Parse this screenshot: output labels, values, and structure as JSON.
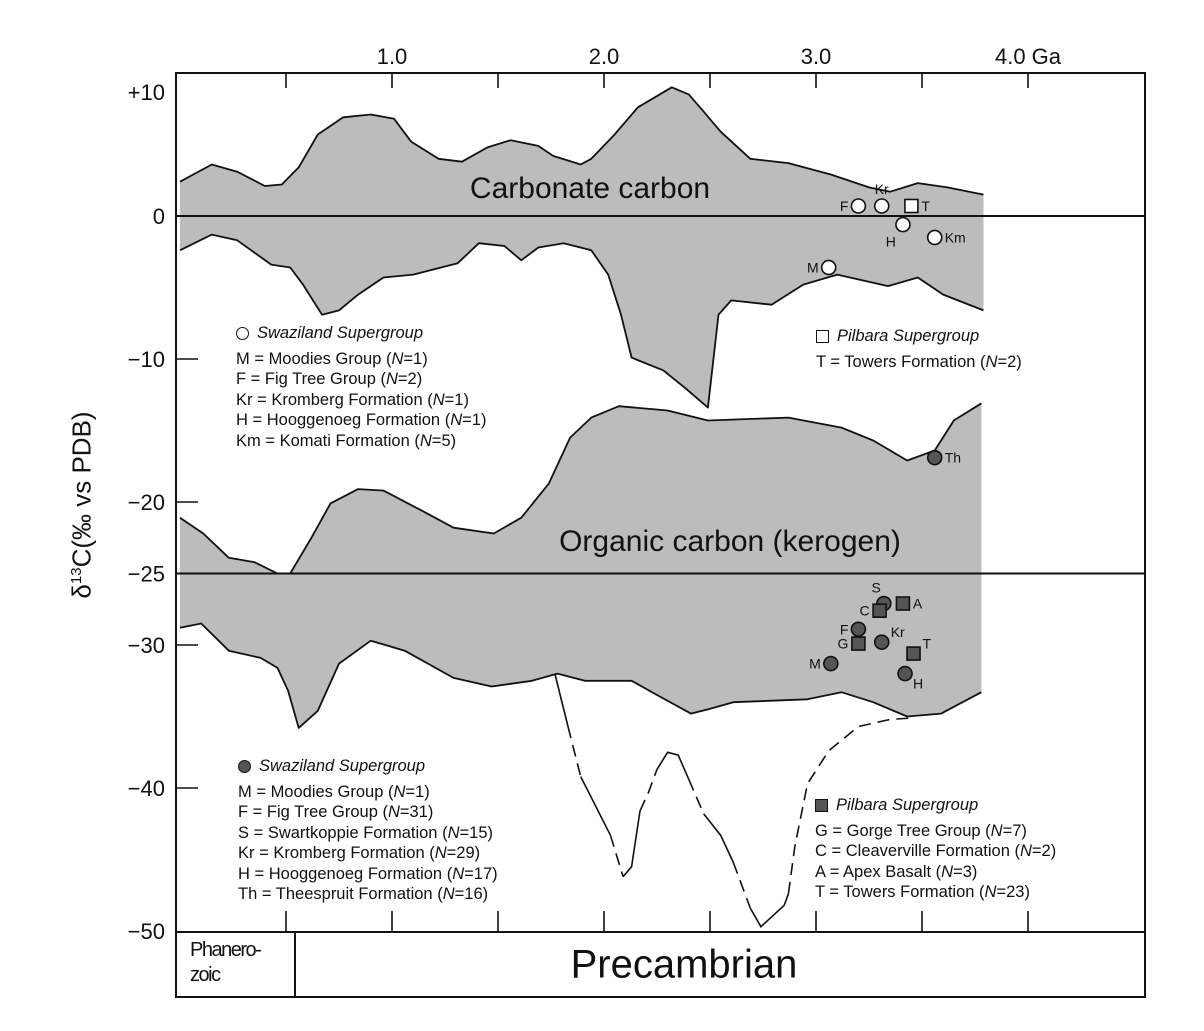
{
  "chart_data": {
    "type": "area",
    "title": "",
    "xlabel_unit": "Ga",
    "ylabel": {
      "prefix": "δ",
      "sup": "13",
      "rest": "C(‰ vs PDB)"
    },
    "xlim": [
      0,
      4.5
    ],
    "ylim": [
      -50,
      10
    ],
    "x_ticks": [
      0.5,
      1.0,
      1.5,
      2.0,
      2.5,
      3.0,
      3.5,
      4.0
    ],
    "x_tick_labels": [
      {
        "x": 1.0,
        "label": "1.0"
      },
      {
        "x": 2.0,
        "label": "2.0"
      },
      {
        "x": 3.0,
        "label": "3.0"
      },
      {
        "x": 4.0,
        "label": "4.0 Ga"
      }
    ],
    "y_tick_labels": [
      {
        "y": 10,
        "label": "+10"
      },
      {
        "y": 0,
        "label": "0"
      },
      {
        "y": -10,
        "label": "−10"
      },
      {
        "y": -20,
        "label": "−20"
      },
      {
        "y": -25,
        "label": "−25"
      },
      {
        "y": -30,
        "label": "−30"
      },
      {
        "y": -40,
        "label": "−40"
      },
      {
        "y": -50,
        "label": "−50"
      }
    ],
    "reference_lines": [
      0,
      -25
    ],
    "bands": [
      {
        "name": "Carbonate carbon",
        "upper": [
          [
            0.0,
            2.4
          ],
          [
            0.15,
            3.6
          ],
          [
            0.27,
            3.1
          ],
          [
            0.4,
            2.1
          ],
          [
            0.48,
            2.2
          ],
          [
            0.56,
            3.4
          ],
          [
            0.65,
            5.7
          ],
          [
            0.77,
            6.9
          ],
          [
            0.9,
            7.1
          ],
          [
            1.01,
            6.8
          ],
          [
            1.09,
            5.2
          ],
          [
            1.22,
            4.0
          ],
          [
            1.33,
            3.8
          ],
          [
            1.45,
            4.8
          ],
          [
            1.56,
            5.3
          ],
          [
            1.69,
            4.9
          ],
          [
            1.76,
            4.2
          ],
          [
            1.89,
            3.6
          ],
          [
            1.94,
            4.0
          ],
          [
            2.05,
            5.7
          ],
          [
            2.16,
            7.6
          ],
          [
            2.32,
            9.0
          ],
          [
            2.4,
            8.5
          ],
          [
            2.47,
            7.3
          ],
          [
            2.55,
            5.9
          ],
          [
            2.69,
            4.0
          ],
          [
            2.87,
            3.7
          ],
          [
            3.07,
            2.9
          ],
          [
            3.25,
            2.0
          ],
          [
            3.35,
            1.7
          ],
          [
            3.48,
            2.3
          ],
          [
            3.62,
            2.0
          ],
          [
            3.79,
            1.5
          ]
        ],
        "lower": [
          [
            0.0,
            -2.4
          ],
          [
            0.15,
            -1.3
          ],
          [
            0.27,
            -1.7
          ],
          [
            0.43,
            -3.4
          ],
          [
            0.52,
            -3.6
          ],
          [
            0.58,
            -4.8
          ],
          [
            0.67,
            -6.9
          ],
          [
            0.75,
            -6.6
          ],
          [
            0.84,
            -5.5
          ],
          [
            0.96,
            -4.3
          ],
          [
            1.1,
            -4.1
          ],
          [
            1.31,
            -3.3
          ],
          [
            1.41,
            -1.9
          ],
          [
            1.53,
            -2.1
          ],
          [
            1.61,
            -3.1
          ],
          [
            1.69,
            -2.2
          ],
          [
            1.81,
            -1.9
          ],
          [
            1.94,
            -2.4
          ],
          [
            2.02,
            -4.1
          ],
          [
            2.08,
            -6.9
          ],
          [
            2.13,
            -9.9
          ],
          [
            2.28,
            -10.8
          ],
          [
            2.38,
            -12.0
          ],
          [
            2.49,
            -13.4
          ],
          [
            2.54,
            -6.9
          ],
          [
            2.6,
            -5.9
          ],
          [
            2.79,
            -6.2
          ],
          [
            2.94,
            -4.8
          ],
          [
            3.1,
            -4.1
          ],
          [
            3.34,
            -4.9
          ],
          [
            3.48,
            -4.3
          ],
          [
            3.6,
            -5.5
          ],
          [
            3.79,
            -6.6
          ]
        ]
      },
      {
        "name": "Organic carbon (kerogen)",
        "upper": [
          [
            0.0,
            -21.1
          ],
          [
            0.11,
            -22.2
          ],
          [
            0.23,
            -23.9
          ],
          [
            0.35,
            -24.2
          ],
          [
            0.46,
            -25.0
          ],
          [
            0.52,
            -25.0
          ],
          [
            0.62,
            -22.5
          ],
          [
            0.71,
            -20.1
          ],
          [
            0.84,
            -19.1
          ],
          [
            0.96,
            -19.2
          ],
          [
            1.14,
            -20.6
          ],
          [
            1.29,
            -21.8
          ],
          [
            1.48,
            -22.2
          ],
          [
            1.61,
            -21.1
          ],
          [
            1.74,
            -18.7
          ],
          [
            1.84,
            -15.5
          ],
          [
            1.94,
            -14.1
          ],
          [
            2.07,
            -13.3
          ],
          [
            2.3,
            -13.6
          ],
          [
            2.49,
            -14.3
          ],
          [
            2.87,
            -14.1
          ],
          [
            3.12,
            -14.8
          ],
          [
            3.27,
            -15.7
          ],
          [
            3.43,
            -17.1
          ],
          [
            3.56,
            -16.4
          ],
          [
            3.65,
            -14.3
          ],
          [
            3.78,
            -13.1
          ]
        ],
        "lower": [
          [
            0.0,
            -28.8
          ],
          [
            0.1,
            -28.5
          ],
          [
            0.23,
            -30.4
          ],
          [
            0.38,
            -30.9
          ],
          [
            0.46,
            -31.6
          ],
          [
            0.51,
            -33.2
          ],
          [
            0.56,
            -35.8
          ],
          [
            0.65,
            -34.6
          ],
          [
            0.75,
            -31.3
          ],
          [
            0.9,
            -29.7
          ],
          [
            1.06,
            -30.4
          ],
          [
            1.29,
            -32.3
          ],
          [
            1.47,
            -32.9
          ],
          [
            1.66,
            -32.5
          ],
          [
            1.78,
            -32.0
          ],
          [
            1.91,
            -32.5
          ],
          [
            2.13,
            -32.5
          ],
          [
            2.25,
            -33.5
          ],
          [
            2.41,
            -34.8
          ],
          [
            2.49,
            -34.5
          ],
          [
            2.61,
            -34.0
          ],
          [
            2.96,
            -33.8
          ],
          [
            3.12,
            -33.3
          ],
          [
            3.27,
            -34.0
          ],
          [
            3.43,
            -35.0
          ],
          [
            3.59,
            -34.8
          ],
          [
            3.78,
            -33.3
          ]
        ]
      }
    ],
    "excursion_line": [
      {
        "style": "solid",
        "points": [
          [
            1.77,
            -32.1
          ],
          [
            1.83,
            -35.7
          ]
        ]
      },
      {
        "style": "dashed",
        "points": [
          [
            1.83,
            -35.7
          ],
          [
            1.89,
            -39.2
          ]
        ]
      },
      {
        "style": "solid",
        "points": [
          [
            1.89,
            -39.2
          ],
          [
            2.03,
            -43.3
          ]
        ]
      },
      {
        "style": "dashed",
        "points": [
          [
            2.03,
            -43.3
          ],
          [
            2.09,
            -46.2
          ]
        ]
      },
      {
        "style": "solid",
        "points": [
          [
            2.09,
            -46.2
          ],
          [
            2.13,
            -45.5
          ],
          [
            2.17,
            -41.6
          ]
        ]
      },
      {
        "style": "dashed",
        "points": [
          [
            2.17,
            -41.6
          ],
          [
            2.21,
            -40.3
          ],
          [
            2.25,
            -38.7
          ]
        ]
      },
      {
        "style": "solid",
        "points": [
          [
            2.25,
            -38.7
          ],
          [
            2.3,
            -37.5
          ],
          [
            2.35,
            -37.7
          ],
          [
            2.4,
            -39.4
          ]
        ]
      },
      {
        "style": "dashed",
        "points": [
          [
            2.4,
            -39.4
          ],
          [
            2.47,
            -41.8
          ]
        ]
      },
      {
        "style": "solid",
        "points": [
          [
            2.47,
            -41.8
          ],
          [
            2.55,
            -43.3
          ],
          [
            2.61,
            -45.2
          ]
        ]
      },
      {
        "style": "dashed",
        "points": [
          [
            2.61,
            -45.2
          ],
          [
            2.69,
            -48.4
          ]
        ]
      },
      {
        "style": "solid",
        "points": [
          [
            2.69,
            -48.4
          ],
          [
            2.74,
            -49.7
          ],
          [
            2.85,
            -48.2
          ],
          [
            2.87,
            -47.4
          ]
        ]
      },
      {
        "style": "dashed",
        "points": [
          [
            2.87,
            -47.4
          ],
          [
            2.9,
            -44.1
          ],
          [
            2.96,
            -39.7
          ],
          [
            3.06,
            -37.4
          ],
          [
            3.2,
            -35.7
          ],
          [
            3.35,
            -35.2
          ],
          [
            3.46,
            -35.1
          ]
        ]
      }
    ],
    "points": [
      {
        "group": "carbonate",
        "symbol": "open-circle",
        "label": "F",
        "x": 3.2,
        "y": 0.7,
        "label_pos": "left"
      },
      {
        "group": "carbonate",
        "symbol": "open-circle",
        "label": "Kr",
        "x": 3.31,
        "y": 0.7,
        "label_pos": "above"
      },
      {
        "group": "carbonate",
        "symbol": "open-square",
        "label": "T",
        "x": 3.45,
        "y": 0.7,
        "label_pos": "right"
      },
      {
        "group": "carbonate",
        "symbol": "open-circle",
        "label": "H",
        "x": 3.41,
        "y": -0.6,
        "label_pos": "below-left"
      },
      {
        "group": "carbonate",
        "symbol": "open-circle",
        "label": "Km",
        "x": 3.56,
        "y": -1.5,
        "label_pos": "right"
      },
      {
        "group": "carbonate",
        "symbol": "open-circle",
        "label": "M",
        "x": 3.06,
        "y": -3.6,
        "label_pos": "left"
      },
      {
        "group": "organic",
        "symbol": "filled-circle",
        "label": "Th",
        "x": 3.56,
        "y": -16.9,
        "label_pos": "right"
      },
      {
        "group": "organic",
        "symbol": "filled-circle",
        "label": "S",
        "x": 3.32,
        "y": -27.1,
        "label_pos": "above-left"
      },
      {
        "group": "organic",
        "symbol": "filled-square",
        "label": "C",
        "x": 3.3,
        "y": -27.6,
        "label_pos": "left"
      },
      {
        "group": "organic",
        "symbol": "filled-square",
        "label": "A",
        "x": 3.41,
        "y": -27.1,
        "label_pos": "right"
      },
      {
        "group": "organic",
        "symbol": "filled-circle",
        "label": "F",
        "x": 3.2,
        "y": -28.9,
        "label_pos": "left"
      },
      {
        "group": "organic",
        "symbol": "filled-square",
        "label": "G",
        "x": 3.2,
        "y": -29.9,
        "label_pos": "left"
      },
      {
        "group": "organic",
        "symbol": "filled-circle",
        "label": "Kr",
        "x": 3.31,
        "y": -29.8,
        "label_pos": "above-right"
      },
      {
        "group": "organic",
        "symbol": "filled-square",
        "label": "T",
        "x": 3.46,
        "y": -30.6,
        "label_pos": "above-right"
      },
      {
        "group": "organic",
        "symbol": "filled-circle",
        "label": "M",
        "x": 3.07,
        "y": -31.3,
        "label_pos": "left"
      },
      {
        "group": "organic",
        "symbol": "filled-circle",
        "label": "H",
        "x": 3.42,
        "y": -32.0,
        "label_pos": "below-right"
      }
    ],
    "eras": {
      "phanerozoic": "Phanero-\nzoic",
      "precambrian": "Precambrian"
    }
  },
  "band_titles": {
    "carbonate": "Carbonate carbon",
    "organic": "Organic carbon (kerogen)"
  },
  "legends": [
    {
      "symbol": "open-circle",
      "title": "Swaziland Supergroup",
      "items": [
        {
          "code": "M",
          "name": "Moodies Group",
          "n": "1"
        },
        {
          "code": "F",
          "name": "Fig Tree Group",
          "n": "2"
        },
        {
          "code": "Kr",
          "name": "Kromberg Formation",
          "n": "1"
        },
        {
          "code": "H",
          "name": "Hooggenoeg Formation",
          "n": "1"
        },
        {
          "code": "Km",
          "name": "Komati Formation",
          "n": "5"
        }
      ]
    },
    {
      "symbol": "open-square",
      "title": "Pilbara Supergroup",
      "items": [
        {
          "code": "T",
          "name": "Towers Formation",
          "n": "2"
        }
      ]
    },
    {
      "symbol": "filled-circle",
      "title": "Swaziland Supergroup",
      "items": [
        {
          "code": "M",
          "name": "Moodies Group",
          "n": "1"
        },
        {
          "code": "F",
          "name": "Fig Tree Group",
          "n": "31"
        },
        {
          "code": "S",
          "name": "Swartkoppie Formation",
          "n": "15"
        },
        {
          "code": "Kr",
          "name": "Kromberg Formation",
          "n": "29"
        },
        {
          "code": "H",
          "name": "Hooggenoeg Formation",
          "n": "17"
        },
        {
          "code": "Th",
          "name": "Theespruit Formation",
          "n": "16"
        }
      ]
    },
    {
      "symbol": "filled-square",
      "title": "Pilbara Supergroup",
      "items": [
        {
          "code": "G",
          "name": "Gorge Tree Group",
          "n": "7"
        },
        {
          "code": "C",
          "name": "Cleaverville Formation",
          "n": "2"
        },
        {
          "code": "A",
          "name": "Apex Basalt",
          "n": "3"
        },
        {
          "code": "T",
          "name": "Towers Formation",
          "n": "23"
        }
      ]
    }
  ],
  "colors": {
    "band_fill": "#bcbcbc",
    "ink": "#111111",
    "filled_symbol": "#555555"
  }
}
